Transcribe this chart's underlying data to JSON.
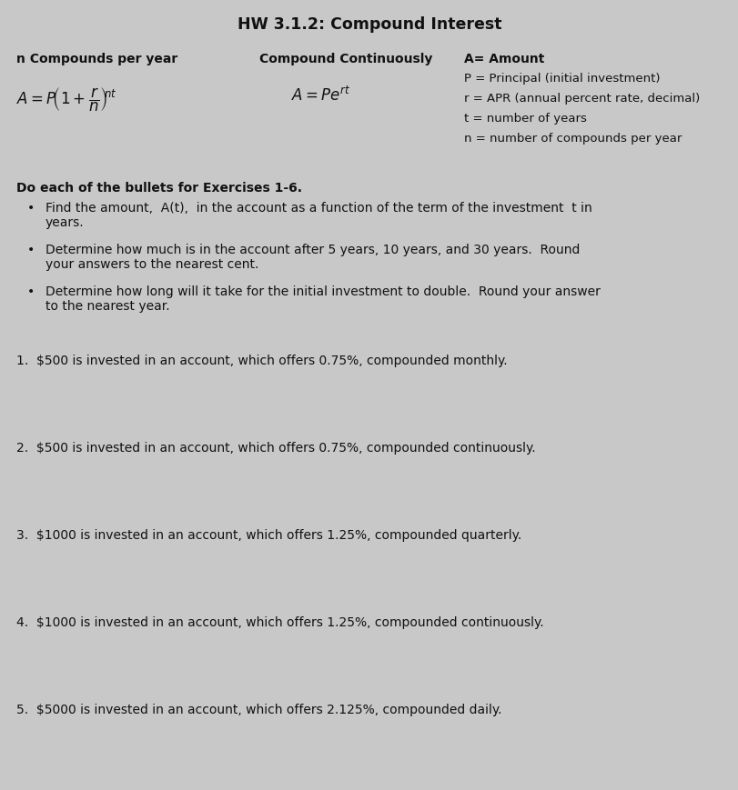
{
  "title": "HW 3.1.2: Compound Interest",
  "bg_color": "#c8c8c8",
  "text_color": "#111111",
  "header_col1": "n Compounds per year",
  "header_col2": "Compound Continuously",
  "header_col3_line1": "A= Amount",
  "definitions": [
    "P = Principal (initial investment)",
    "r = APR (annual percent rate, decimal)",
    "t = number of years",
    "n = number of compounds per year"
  ],
  "intro": "Do each of the bullets for Exercises 1-6.",
  "bullet1_line1": "Find the amount,  A(t),  in the account as a function of the term of the investment  t in",
  "bullet1_line2": "years.",
  "bullet2_line1": "Determine how much is in the account after 5 years, 10 years, and 30 years.  Round",
  "bullet2_line2": "your answers to the nearest cent.",
  "bullet3_line1": "Determine how long will it take for the initial investment to double.  Round your answer",
  "bullet3_line2": "to the nearest year.",
  "exercises": [
    "1.  $500 is invested in an account, which offers 0.75%, compounded monthly.",
    "2.  $500 is invested in an account, which offers 0.75%, compounded continuously.",
    "3.  $1000 is invested in an account, which offers 1.25%, compounded quarterly.",
    "4.  $1000 is invested in an account, which offers 1.25%, compounded continuously.",
    "5.  $5000 is invested in an account, which offers 2.125%, compounded daily."
  ],
  "font_size_title": 12.5,
  "font_size_header": 10,
  "font_size_body": 10,
  "font_size_formula": 11,
  "fig_width": 8.12,
  "fig_height": 8.69,
  "dpi": 100
}
